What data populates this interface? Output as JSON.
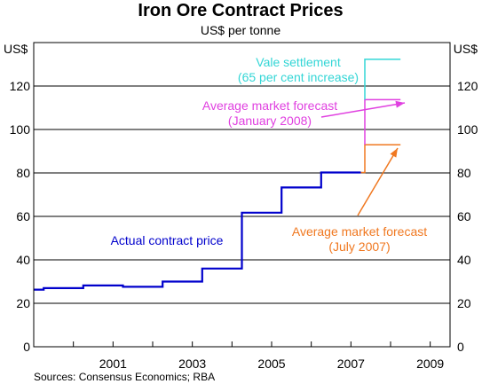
{
  "chart_data": {
    "type": "line",
    "title": "Iron Ore Contract Prices",
    "subtitle": "US$ per tonne",
    "y_unit_left": "US$",
    "y_unit_right": "US$",
    "ylim": [
      0,
      140
    ],
    "yticks": [
      0,
      20,
      40,
      60,
      80,
      100,
      120
    ],
    "xlim": [
      1999.0,
      2009.5
    ],
    "xticks": [
      {
        "year": 2001,
        "label": "2001"
      },
      {
        "year": 2003,
        "label": "2003"
      },
      {
        "year": 2005,
        "label": "2005"
      },
      {
        "year": 2007,
        "label": "2007"
      },
      {
        "year": 2009,
        "label": "2009"
      }
    ],
    "grid": true,
    "source": "Sources: Consensus Economics; RBA",
    "colors": {
      "actual": "#0000cc",
      "vale": "#33d6d6",
      "forecast_jan2008": "#e040e0",
      "forecast_jul2007": "#f07820"
    },
    "series": [
      {
        "key": "actual",
        "name": "Actual contract price",
        "points": [
          [
            1999.0,
            26.3
          ],
          [
            1999.25,
            26.3
          ],
          [
            1999.25,
            27.0
          ],
          [
            2000.25,
            27.0
          ],
          [
            2000.25,
            28.2
          ],
          [
            2001.25,
            28.2
          ],
          [
            2001.25,
            27.6
          ],
          [
            2002.25,
            27.6
          ],
          [
            2002.25,
            30.0
          ],
          [
            2003.25,
            30.0
          ],
          [
            2003.25,
            36.0
          ],
          [
            2004.25,
            36.0
          ],
          [
            2004.25,
            61.7
          ],
          [
            2005.25,
            61.7
          ],
          [
            2005.25,
            73.3
          ],
          [
            2006.25,
            73.3
          ],
          [
            2006.25,
            80.2
          ],
          [
            2007.25,
            80.2
          ]
        ]
      },
      {
        "key": "forecast_jul2007",
        "name": "Average market forecast\n(July 2007)",
        "points": [
          [
            2007.25,
            80.2
          ],
          [
            2007.35,
            80.2
          ],
          [
            2007.35,
            93.0
          ],
          [
            2008.25,
            93.0
          ]
        ]
      },
      {
        "key": "forecast_jan2008",
        "name": "Average market forecast\n(January 2008)",
        "points": [
          [
            2007.35,
            93.0
          ],
          [
            2007.35,
            113.7
          ],
          [
            2008.25,
            113.7
          ]
        ]
      },
      {
        "key": "vale",
        "name": "Vale settlement\n(65 per cent increase)",
        "points": [
          [
            2007.35,
            113.7
          ],
          [
            2007.35,
            132.3
          ],
          [
            2008.25,
            132.3
          ]
        ]
      }
    ],
    "annotations": [
      {
        "key": "actual",
        "lines": [
          "Actual contract price"
        ]
      },
      {
        "key": "vale",
        "lines": [
          "Vale settlement",
          "(65 per cent increase)"
        ]
      },
      {
        "key": "forecast_jan2008",
        "lines": [
          "Average market forecast",
          "(January 2008)"
        ]
      },
      {
        "key": "forecast_jul2007",
        "lines": [
          "Average market forecast",
          "(July 2007)"
        ]
      }
    ]
  }
}
